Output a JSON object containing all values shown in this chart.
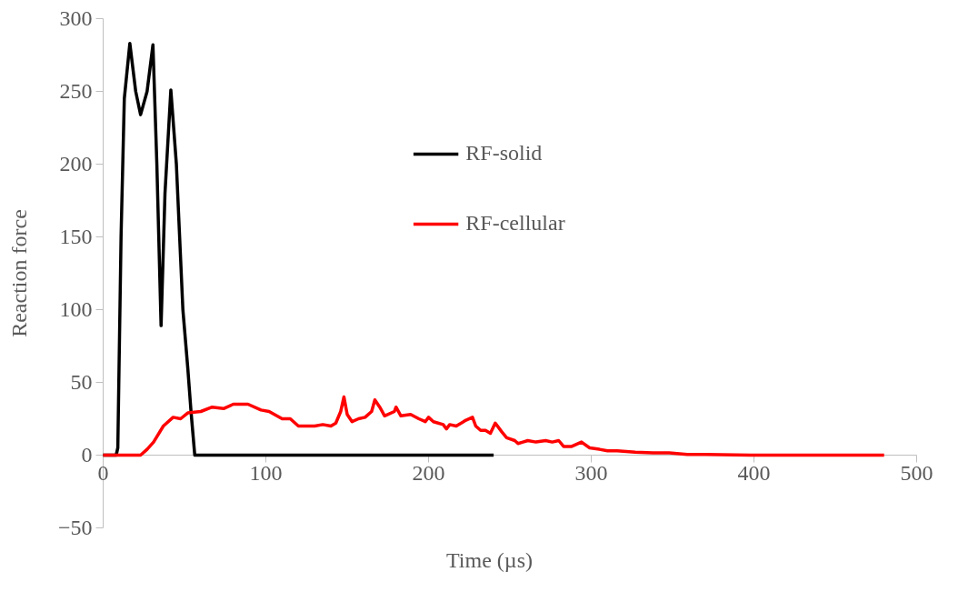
{
  "chart_data": {
    "type": "line",
    "xlabel": "Time (µs)",
    "ylabel": "Reaction force",
    "xlim": [
      0,
      500
    ],
    "ylim": [
      -50,
      300
    ],
    "xticks": [
      0,
      100,
      200,
      300,
      400,
      500
    ],
    "yticks": [
      -50,
      0,
      50,
      100,
      150,
      200,
      250,
      300
    ],
    "grid": false,
    "legend": "top",
    "marker": "none",
    "line_style": "solid",
    "series": [
      {
        "name": "RF-solid",
        "color": "#000000",
        "x": [
          0,
          8,
          9,
          11,
          13,
          16.4,
          20,
          23,
          27,
          30.6,
          33,
          35.6,
          38,
          41.6,
          45,
          49,
          52,
          54,
          56.3,
          100,
          240
        ],
        "values": [
          0,
          0,
          5,
          150,
          245,
          283,
          250,
          234,
          250,
          282,
          200,
          89,
          180,
          251,
          200,
          100,
          60,
          30,
          0,
          0,
          0
        ]
      },
      {
        "name": "RF-cellular",
        "color": "#ff0000",
        "x": [
          0,
          23,
          27,
          31,
          37,
          43,
          47.6,
          52,
          60,
          67,
          74,
          80,
          89,
          97,
          102,
          110,
          115,
          120,
          130,
          135,
          140,
          143,
          146,
          148,
          150,
          153,
          157,
          161,
          165,
          167,
          170,
          173,
          179,
          180,
          183,
          189,
          194,
          198,
          200,
          203,
          209,
          211,
          213,
          217,
          223,
          227,
          229,
          232,
          235,
          238,
          241,
          245,
          248,
          253,
          255,
          258,
          261,
          266,
          272,
          276,
          280,
          283,
          288,
          294,
          299,
          305,
          310,
          316,
          327,
          338,
          348,
          359,
          370,
          398,
          480
        ],
        "values": [
          0,
          0,
          4,
          9,
          20,
          26,
          25,
          29,
          30,
          33,
          32,
          35,
          35,
          31,
          30,
          25,
          25,
          20,
          20,
          21,
          20,
          22,
          30,
          40,
          28,
          23,
          25,
          26,
          30,
          38,
          33,
          27,
          30,
          33,
          27,
          28,
          25,
          23,
          26,
          23,
          21,
          18,
          21,
          20,
          24,
          26,
          20,
          17,
          17,
          15,
          22,
          16,
          12,
          10,
          8,
          9,
          10,
          9,
          10,
          9,
          10,
          6,
          6,
          9,
          5,
          4,
          3,
          3,
          2,
          1.5,
          1.5,
          0.5,
          0.5,
          0,
          0
        ]
      }
    ]
  }
}
